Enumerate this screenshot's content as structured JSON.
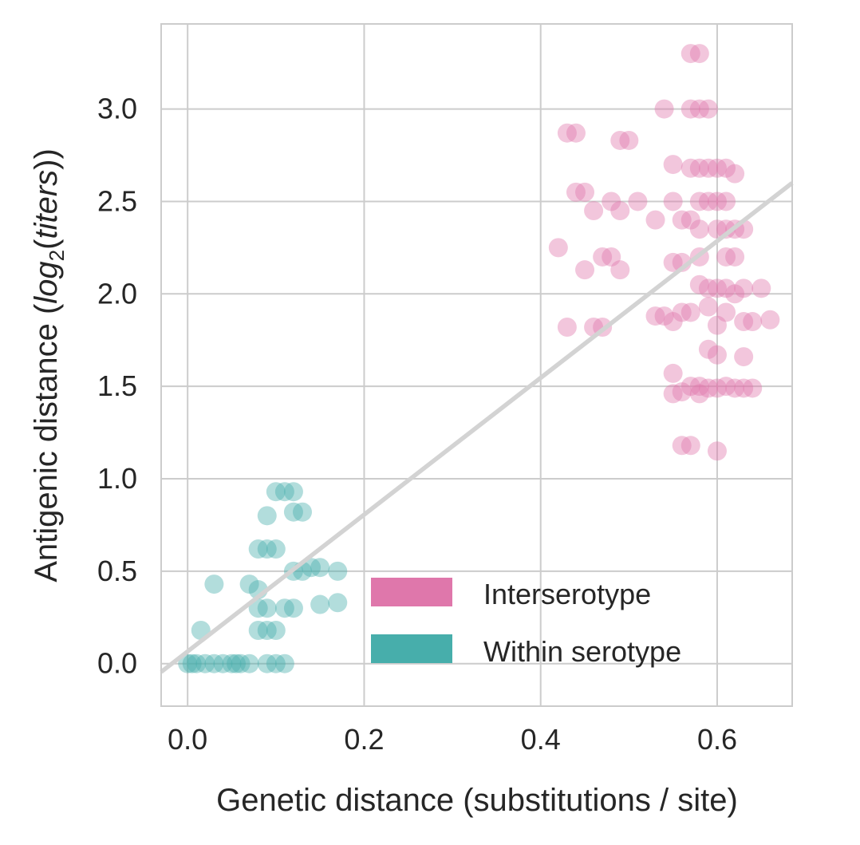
{
  "chart_data": {
    "type": "scatter",
    "title": "",
    "xlabel": "Genetic distance (substitutions / site)",
    "ylabel": {
      "prefix": "Antigenic distance (",
      "log": "log",
      "sub": "2",
      "paren_open": "(",
      "italic": "titers",
      "suffix": "))"
    },
    "xlim": [
      -0.03,
      0.685
    ],
    "ylim": [
      -0.23,
      3.46
    ],
    "xticks": [
      0.0,
      0.2,
      0.4,
      0.6
    ],
    "xtick_labels": [
      "0.0",
      "0.2",
      "0.4",
      "0.6"
    ],
    "yticks": [
      0.0,
      0.5,
      1.0,
      1.5,
      2.0,
      2.5,
      3.0
    ],
    "ytick_labels": [
      "0.0",
      "0.5",
      "1.0",
      "1.5",
      "2.0",
      "2.5",
      "3.0"
    ],
    "grid": true,
    "legend_position": "bottom-right",
    "fit_line": {
      "color": "#d3d3d3",
      "x": [
        -0.03,
        0.685
      ],
      "y": [
        -0.045,
        2.6
      ]
    },
    "series": [
      {
        "name": "Interserotype",
        "color": "#df77ab",
        "points": [
          [
            0.57,
            3.3
          ],
          [
            0.58,
            3.3
          ],
          [
            0.54,
            3.0
          ],
          [
            0.57,
            3.0
          ],
          [
            0.58,
            3.0
          ],
          [
            0.59,
            3.0
          ],
          [
            0.43,
            2.87
          ],
          [
            0.44,
            2.87
          ],
          [
            0.49,
            2.83
          ],
          [
            0.5,
            2.83
          ],
          [
            0.55,
            2.7
          ],
          [
            0.57,
            2.68
          ],
          [
            0.58,
            2.68
          ],
          [
            0.59,
            2.68
          ],
          [
            0.6,
            2.68
          ],
          [
            0.61,
            2.68
          ],
          [
            0.62,
            2.65
          ],
          [
            0.44,
            2.55
          ],
          [
            0.45,
            2.55
          ],
          [
            0.48,
            2.5
          ],
          [
            0.51,
            2.5
          ],
          [
            0.55,
            2.5
          ],
          [
            0.58,
            2.5
          ],
          [
            0.59,
            2.5
          ],
          [
            0.6,
            2.5
          ],
          [
            0.61,
            2.5
          ],
          [
            0.46,
            2.45
          ],
          [
            0.49,
            2.45
          ],
          [
            0.53,
            2.4
          ],
          [
            0.56,
            2.4
          ],
          [
            0.57,
            2.4
          ],
          [
            0.58,
            2.35
          ],
          [
            0.6,
            2.35
          ],
          [
            0.61,
            2.35
          ],
          [
            0.62,
            2.35
          ],
          [
            0.63,
            2.35
          ],
          [
            0.42,
            2.25
          ],
          [
            0.45,
            2.13
          ],
          [
            0.47,
            2.2
          ],
          [
            0.48,
            2.2
          ],
          [
            0.49,
            2.13
          ],
          [
            0.55,
            2.17
          ],
          [
            0.56,
            2.17
          ],
          [
            0.58,
            2.2
          ],
          [
            0.61,
            2.2
          ],
          [
            0.62,
            2.2
          ],
          [
            0.58,
            2.05
          ],
          [
            0.59,
            2.03
          ],
          [
            0.6,
            2.03
          ],
          [
            0.61,
            2.03
          ],
          [
            0.62,
            2.0
          ],
          [
            0.63,
            2.03
          ],
          [
            0.65,
            2.03
          ],
          [
            0.56,
            1.9
          ],
          [
            0.57,
            1.9
          ],
          [
            0.59,
            1.93
          ],
          [
            0.61,
            1.9
          ],
          [
            0.63,
            1.85
          ],
          [
            0.64,
            1.85
          ],
          [
            0.66,
            1.86
          ],
          [
            0.43,
            1.82
          ],
          [
            0.46,
            1.82
          ],
          [
            0.47,
            1.82
          ],
          [
            0.53,
            1.88
          ],
          [
            0.54,
            1.88
          ],
          [
            0.55,
            1.85
          ],
          [
            0.6,
            1.83
          ],
          [
            0.59,
            1.7
          ],
          [
            0.6,
            1.67
          ],
          [
            0.63,
            1.66
          ],
          [
            0.55,
            1.57
          ],
          [
            0.56,
            1.47
          ],
          [
            0.57,
            1.5
          ],
          [
            0.58,
            1.5
          ],
          [
            0.59,
            1.49
          ],
          [
            0.6,
            1.49
          ],
          [
            0.61,
            1.5
          ],
          [
            0.62,
            1.49
          ],
          [
            0.63,
            1.49
          ],
          [
            0.64,
            1.49
          ],
          [
            0.55,
            1.46
          ],
          [
            0.58,
            1.46
          ],
          [
            0.56,
            1.18
          ],
          [
            0.57,
            1.18
          ],
          [
            0.6,
            1.15
          ]
        ]
      },
      {
        "name": "Within serotype",
        "color": "#47aeab",
        "points": [
          [
            0.0,
            0.0
          ],
          [
            0.005,
            0.0
          ],
          [
            0.01,
            0.0
          ],
          [
            0.02,
            0.0
          ],
          [
            0.03,
            0.0
          ],
          [
            0.04,
            0.0
          ],
          [
            0.05,
            0.0
          ],
          [
            0.055,
            0.0
          ],
          [
            0.06,
            0.0
          ],
          [
            0.07,
            0.0
          ],
          [
            0.09,
            0.0
          ],
          [
            0.1,
            0.0
          ],
          [
            0.11,
            0.0
          ],
          [
            0.015,
            0.18
          ],
          [
            0.08,
            0.18
          ],
          [
            0.09,
            0.18
          ],
          [
            0.1,
            0.18
          ],
          [
            0.08,
            0.3
          ],
          [
            0.09,
            0.3
          ],
          [
            0.11,
            0.3
          ],
          [
            0.12,
            0.3
          ],
          [
            0.15,
            0.32
          ],
          [
            0.17,
            0.33
          ],
          [
            0.03,
            0.43
          ],
          [
            0.07,
            0.43
          ],
          [
            0.08,
            0.4
          ],
          [
            0.12,
            0.5
          ],
          [
            0.13,
            0.5
          ],
          [
            0.14,
            0.52
          ],
          [
            0.15,
            0.52
          ],
          [
            0.17,
            0.5
          ],
          [
            0.08,
            0.62
          ],
          [
            0.09,
            0.62
          ],
          [
            0.1,
            0.62
          ],
          [
            0.09,
            0.8
          ],
          [
            0.12,
            0.82
          ],
          [
            0.13,
            0.82
          ],
          [
            0.1,
            0.93
          ],
          [
            0.11,
            0.93
          ],
          [
            0.12,
            0.93
          ]
        ]
      }
    ]
  }
}
